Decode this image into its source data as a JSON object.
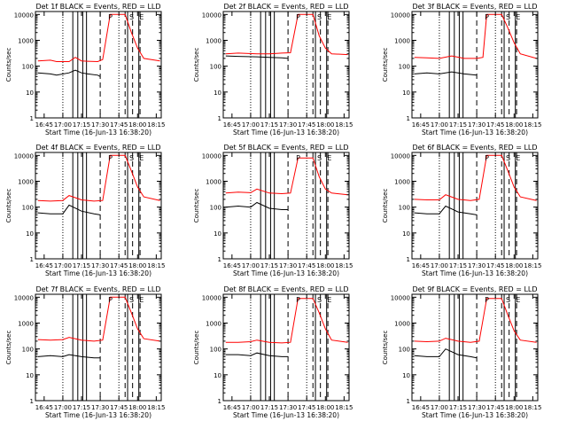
{
  "chart_data": [
    {
      "type": "line",
      "title": "Det 1f BLACK = Events, RED = LLD",
      "xlabel": "Start Time (16-Jun-13 16:38:20)",
      "ylabel": "Counts/sec",
      "xticks": [
        "16:45",
        "17:00",
        "17:15",
        "17:30",
        "17:45",
        "18:00",
        "18:15"
      ],
      "yticks": [
        "1",
        "10",
        "100",
        "1000",
        "10000"
      ],
      "xlim": [
        "16:38",
        "18:19"
      ],
      "ylim": [
        1,
        13000
      ],
      "yscale": "log",
      "markers": [
        "P",
        "S",
        "E"
      ],
      "series": [
        {
          "name": "Events",
          "color": "#000000",
          "x": [
            "16:40",
            "16:50",
            "16:55",
            "17:05",
            "17:10",
            "17:15",
            "17:20",
            "17:28",
            "17:30"
          ],
          "y": [
            55,
            50,
            45,
            55,
            70,
            55,
            50,
            45,
            40
          ]
        },
        {
          "name": "LLD",
          "color": "#ff0000",
          "x": [
            "16:40",
            "16:50",
            "16:55",
            "17:05",
            "17:10",
            "17:15",
            "17:20",
            "17:28",
            "17:32",
            "17:38",
            "17:50",
            "17:55",
            "18:00",
            "18:05",
            "18:18"
          ],
          "y": [
            160,
            170,
            150,
            150,
            220,
            160,
            155,
            150,
            180,
            10000,
            10000,
            2000,
            500,
            200,
            160
          ]
        }
      ]
    },
    {
      "type": "line",
      "title": "Det 2f BLACK = Events, RED = LLD",
      "xlabel": "Start Time (16-Jun-13 16:38:20)",
      "ylabel": "Counts/sec",
      "xticks": [
        "16:45",
        "17:00",
        "17:15",
        "17:30",
        "17:45",
        "18:00",
        "18:15"
      ],
      "yticks": [
        "1",
        "10",
        "100",
        "1000",
        "10000"
      ],
      "xlim": [
        "16:38",
        "18:19"
      ],
      "ylim": [
        1,
        13000
      ],
      "yscale": "log",
      "markers": [
        "P",
        "S",
        "E"
      ],
      "series": [
        {
          "name": "Events",
          "color": "#000000",
          "x": [
            "16:40",
            "16:50",
            "17:05",
            "17:15",
            "17:25",
            "17:30"
          ],
          "y": [
            250,
            240,
            230,
            220,
            210,
            200
          ]
        },
        {
          "name": "LLD",
          "color": "#ff0000",
          "x": [
            "16:40",
            "16:50",
            "17:05",
            "17:15",
            "17:25",
            "17:32",
            "17:38",
            "17:50",
            "17:55",
            "18:00",
            "18:05",
            "18:18"
          ],
          "y": [
            300,
            320,
            300,
            300,
            320,
            330,
            10000,
            10000,
            1500,
            500,
            300,
            280
          ]
        }
      ]
    },
    {
      "type": "line",
      "title": "Det 3f BLACK = Events, RED = LLD",
      "xlabel": "Start Time (16-Jun-13 16:38:20)",
      "ylabel": "Counts/sec",
      "xticks": [
        "16:45",
        "17:00",
        "17:15",
        "17:30",
        "17:45",
        "18:00",
        "18:15"
      ],
      "yticks": [
        "1",
        "10",
        "100",
        "1000",
        "10000"
      ],
      "xlim": [
        "16:38",
        "18:19"
      ],
      "ylim": [
        1,
        13000
      ],
      "yscale": "log",
      "markers": [
        "P",
        "S",
        "E"
      ],
      "series": [
        {
          "name": "Events",
          "color": "#000000",
          "x": [
            "16:40",
            "16:50",
            "17:00",
            "17:10",
            "17:20",
            "17:30"
          ],
          "y": [
            50,
            55,
            50,
            60,
            50,
            45
          ]
        },
        {
          "name": "LLD",
          "color": "#ff0000",
          "x": [
            "16:40",
            "16:50",
            "17:00",
            "17:10",
            "17:20",
            "17:30",
            "17:35",
            "17:38",
            "17:50",
            "17:55",
            "18:00",
            "18:05",
            "18:18"
          ],
          "y": [
            220,
            210,
            200,
            250,
            200,
            200,
            220,
            10000,
            10000,
            3000,
            800,
            300,
            200
          ]
        }
      ]
    },
    {
      "type": "line",
      "title": "Det 4f BLACK = Events, RED = LLD",
      "xlabel": "Start Time (16-Jun-13 16:38:20)",
      "ylabel": "Counts/sec",
      "xticks": [
        "16:45",
        "17:00",
        "17:15",
        "17:30",
        "17:45",
        "18:00",
        "18:15"
      ],
      "yticks": [
        "1",
        "10",
        "100",
        "1000",
        "10000"
      ],
      "xlim": [
        "16:38",
        "18:19"
      ],
      "ylim": [
        1,
        13000
      ],
      "yscale": "log",
      "markers": [
        "P",
        "S",
        "E"
      ],
      "series": [
        {
          "name": "Events",
          "color": "#000000",
          "x": [
            "16:40",
            "16:50",
            "17:00",
            "17:05",
            "17:15",
            "17:25",
            "17:30"
          ],
          "y": [
            60,
            55,
            55,
            120,
            70,
            55,
            50
          ]
        },
        {
          "name": "LLD",
          "color": "#ff0000",
          "x": [
            "16:40",
            "16:50",
            "17:00",
            "17:05",
            "17:15",
            "17:25",
            "17:32",
            "17:38",
            "17:50",
            "17:55",
            "18:00",
            "18:05",
            "18:18"
          ],
          "y": [
            180,
            170,
            180,
            280,
            190,
            170,
            180,
            10000,
            10000,
            2500,
            600,
            250,
            180
          ]
        }
      ]
    },
    {
      "type": "line",
      "title": "Det 5f BLACK = Events, RED = LLD",
      "xlabel": "Start Time (16-Jun-13 16:38:20)",
      "ylabel": "Counts/sec",
      "xticks": [
        "16:45",
        "17:00",
        "17:15",
        "17:30",
        "17:45",
        "18:00",
        "18:15"
      ],
      "yticks": [
        "1",
        "10",
        "100",
        "1000",
        "10000"
      ],
      "xlim": [
        "16:38",
        "18:19"
      ],
      "ylim": [
        1,
        13000
      ],
      "yscale": "log",
      "markers": [
        "P",
        "S",
        "E"
      ],
      "series": [
        {
          "name": "Events",
          "color": "#000000",
          "x": [
            "16:40",
            "16:50",
            "17:00",
            "17:05",
            "17:15",
            "17:25",
            "17:30"
          ],
          "y": [
            100,
            110,
            100,
            150,
            90,
            80,
            80
          ]
        },
        {
          "name": "LLD",
          "color": "#ff0000",
          "x": [
            "16:40",
            "16:50",
            "17:00",
            "17:05",
            "17:15",
            "17:25",
            "17:32",
            "17:38",
            "17:50",
            "17:55",
            "18:00",
            "18:05",
            "18:18"
          ],
          "y": [
            350,
            380,
            360,
            500,
            350,
            330,
            350,
            8000,
            8000,
            1500,
            500,
            350,
            300
          ]
        }
      ]
    },
    {
      "type": "line",
      "title": "Det 6f BLACK = Events, RED = LLD",
      "xlabel": "Start Time (16-Jun-13 16:38:20)",
      "ylabel": "Counts/sec",
      "xticks": [
        "16:45",
        "17:00",
        "17:15",
        "17:30",
        "17:45",
        "18:00",
        "18:15"
      ],
      "yticks": [
        "1",
        "10",
        "100",
        "1000",
        "10000"
      ],
      "xlim": [
        "16:38",
        "18:19"
      ],
      "ylim": [
        1,
        13000
      ],
      "yscale": "log",
      "markers": [
        "P",
        "S",
        "E"
      ],
      "series": [
        {
          "name": "Events",
          "color": "#000000",
          "x": [
            "16:40",
            "16:50",
            "17:00",
            "17:05",
            "17:15",
            "17:25",
            "17:30"
          ],
          "y": [
            60,
            55,
            55,
            110,
            65,
            55,
            50
          ]
        },
        {
          "name": "LLD",
          "color": "#ff0000",
          "x": [
            "16:40",
            "16:50",
            "17:00",
            "17:05",
            "17:15",
            "17:25",
            "17:32",
            "17:38",
            "17:50",
            "17:55",
            "18:00",
            "18:05",
            "18:18"
          ],
          "y": [
            200,
            190,
            190,
            300,
            200,
            180,
            200,
            10000,
            10000,
            2500,
            600,
            250,
            180
          ]
        }
      ]
    },
    {
      "type": "line",
      "title": "Det 7f BLACK = Events, RED = LLD",
      "xlabel": "Start Time (16-Jun-13 16:38:20)",
      "ylabel": "Counts/sec",
      "xticks": [
        "16:45",
        "17:00",
        "17:15",
        "17:30",
        "17:45",
        "18:00",
        "18:15"
      ],
      "yticks": [
        "1",
        "10",
        "100",
        "1000",
        "10000"
      ],
      "xlim": [
        "16:38",
        "18:19"
      ],
      "ylim": [
        1,
        13000
      ],
      "yscale": "log",
      "markers": [
        "P",
        "S",
        "E"
      ],
      "series": [
        {
          "name": "Events",
          "color": "#000000",
          "x": [
            "16:40",
            "16:50",
            "17:00",
            "17:05",
            "17:15",
            "17:25",
            "17:30"
          ],
          "y": [
            50,
            55,
            50,
            60,
            50,
            45,
            45
          ]
        },
        {
          "name": "LLD",
          "color": "#ff0000",
          "x": [
            "16:40",
            "16:50",
            "17:00",
            "17:05",
            "17:15",
            "17:25",
            "17:32",
            "17:38",
            "17:50",
            "17:55",
            "18:00",
            "18:05",
            "18:18"
          ],
          "y": [
            230,
            220,
            230,
            280,
            220,
            200,
            220,
            10000,
            10000,
            2500,
            600,
            250,
            200
          ]
        }
      ]
    },
    {
      "type": "line",
      "title": "Det 8f BLACK = Events, RED = LLD",
      "xlabel": "Start Time (16-Jun-13 16:38:20)",
      "ylabel": "Counts/sec",
      "xticks": [
        "16:45",
        "17:00",
        "17:15",
        "17:30",
        "17:45",
        "18:00",
        "18:15"
      ],
      "yticks": [
        "1",
        "10",
        "100",
        "1000",
        "10000"
      ],
      "xlim": [
        "16:38",
        "18:19"
      ],
      "ylim": [
        1,
        13000
      ],
      "yscale": "log",
      "markers": [
        "P",
        "S",
        "E"
      ],
      "series": [
        {
          "name": "Events",
          "color": "#000000",
          "x": [
            "16:40",
            "16:50",
            "17:00",
            "17:05",
            "17:15",
            "17:25",
            "17:30"
          ],
          "y": [
            60,
            60,
            55,
            70,
            55,
            50,
            50
          ]
        },
        {
          "name": "LLD",
          "color": "#ff0000",
          "x": [
            "16:40",
            "16:50",
            "17:00",
            "17:05",
            "17:15",
            "17:25",
            "17:32",
            "17:38",
            "17:50",
            "17:55",
            "18:00",
            "18:05",
            "18:18"
          ],
          "y": [
            180,
            180,
            190,
            220,
            180,
            170,
            180,
            9000,
            9000,
            2500,
            600,
            220,
            180
          ]
        }
      ]
    },
    {
      "type": "line",
      "title": "Det 9f BLACK = Events, RED = LLD",
      "xlabel": "Start Time (16-Jun-13 16:38:20)",
      "ylabel": "Counts/sec",
      "xticks": [
        "16:45",
        "17:00",
        "17:15",
        "17:30",
        "17:45",
        "18:00",
        "18:15"
      ],
      "yticks": [
        "1",
        "10",
        "100",
        "1000",
        "10000"
      ],
      "xlim": [
        "16:38",
        "18:19"
      ],
      "ylim": [
        1,
        13000
      ],
      "yscale": "log",
      "markers": [
        "P",
        "S",
        "E"
      ],
      "series": [
        {
          "name": "Events",
          "color": "#000000",
          "x": [
            "16:40",
            "16:50",
            "17:00",
            "17:05",
            "17:15",
            "17:25",
            "17:30"
          ],
          "y": [
            55,
            50,
            50,
            100,
            60,
            50,
            45
          ]
        },
        {
          "name": "LLD",
          "color": "#ff0000",
          "x": [
            "16:40",
            "16:50",
            "17:00",
            "17:05",
            "17:15",
            "17:25",
            "17:32",
            "17:38",
            "17:50",
            "17:55",
            "18:00",
            "18:05",
            "18:18"
          ],
          "y": [
            200,
            190,
            200,
            260,
            200,
            180,
            200,
            9000,
            9000,
            2000,
            500,
            220,
            180
          ]
        }
      ]
    }
  ]
}
